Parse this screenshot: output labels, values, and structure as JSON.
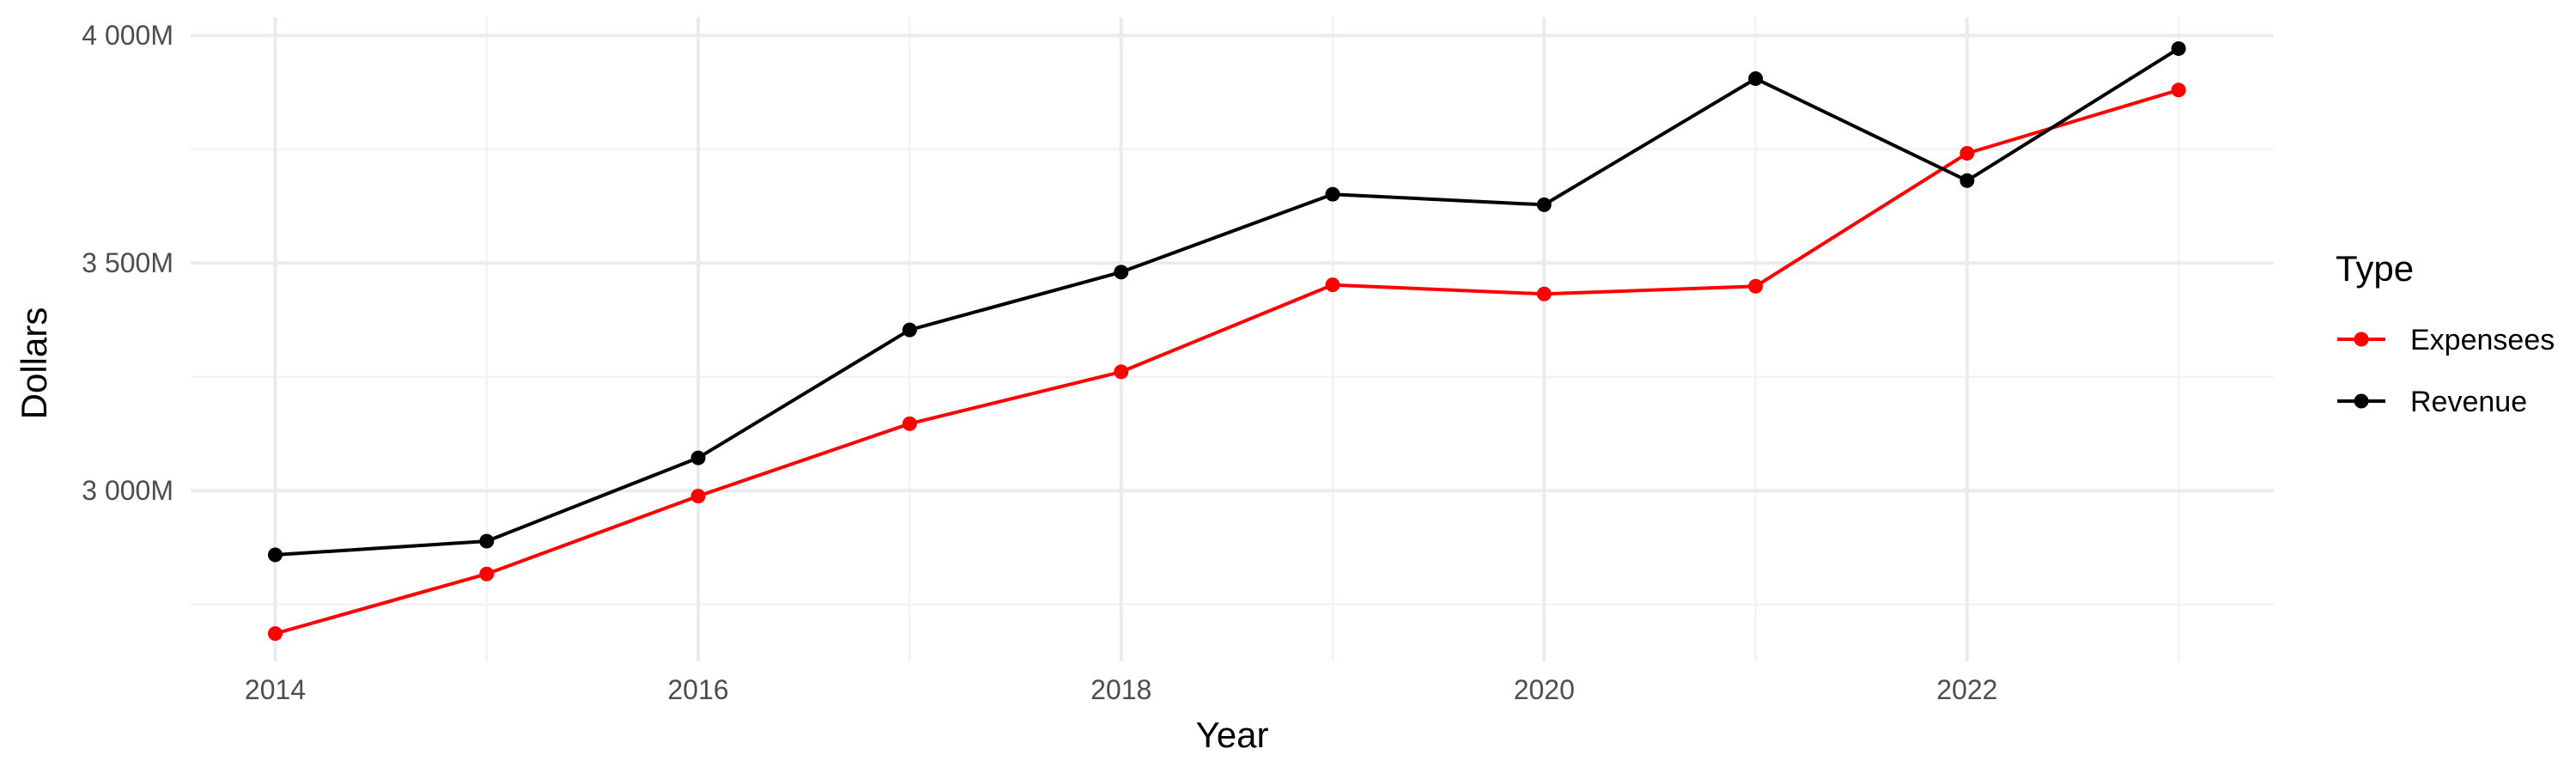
{
  "chart_data": {
    "type": "line",
    "xlabel": "Year",
    "ylabel": "Dollars",
    "x": [
      2014,
      2015,
      2016,
      2017,
      2018,
      2019,
      2020,
      2021,
      2022,
      2023
    ],
    "x_ticks": [
      "2014",
      "2016",
      "2018",
      "2020",
      "2022"
    ],
    "y_ticks": [
      "3 000M",
      "3 500M",
      "4 000M"
    ],
    "y_tick_values": [
      3000,
      3500,
      4000
    ],
    "y_minor_values": [
      2750,
      3250,
      3750
    ],
    "x_minor_values": [
      2015,
      2017,
      2019,
      2021,
      2023
    ],
    "xlim": [
      2013.6,
      2023.45
    ],
    "ylim": [
      2625,
      4040
    ],
    "grid": true,
    "legend": {
      "title": "Type",
      "position": "right"
    },
    "series": [
      {
        "name": "Expensees",
        "color": "#ff0000",
        "values": [
          2686,
          2817,
          2988,
          3147,
          3261,
          3452,
          3432,
          3449,
          3741,
          3880
        ]
      },
      {
        "name": "Revenue",
        "color": "#000000",
        "values": [
          2859,
          2889,
          3072,
          3353,
          3480,
          3651,
          3628,
          3905,
          3681,
          3971
        ]
      }
    ]
  }
}
